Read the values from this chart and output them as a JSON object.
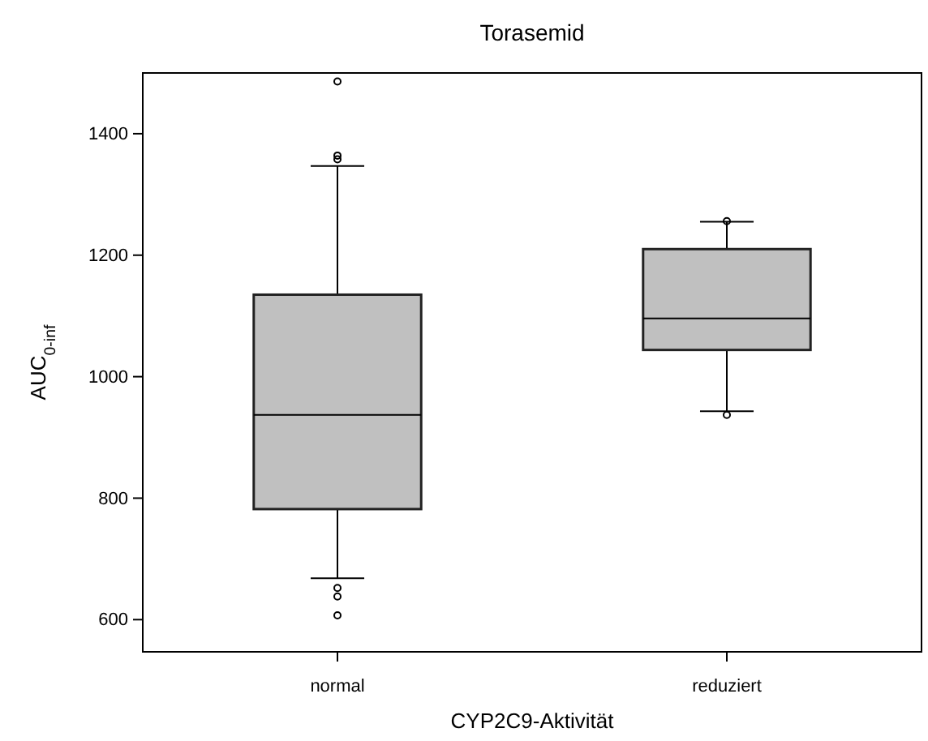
{
  "chart_data": {
    "type": "box",
    "title": "Torasemid",
    "xlabel": "CYP2C9-Aktivität",
    "ylabel": "AUC$_{0-inf}$",
    "categories": [
      "normal",
      "reduziert"
    ],
    "boxes": [
      {
        "low": 668,
        "q1": 782,
        "median": 937,
        "q3": 1135,
        "high": 1347,
        "outliers": [
          1486,
          1364,
          1358,
          652,
          638,
          607
        ]
      },
      {
        "low": 943,
        "q1": 1044,
        "median": 1096,
        "q3": 1210,
        "high": 1255,
        "outliers": [
          1256,
          937
        ]
      }
    ],
    "color": "#c0c0c0",
    "ylim": [
      547,
      1500
    ],
    "yticks": [
      600,
      800,
      1000,
      1200,
      1400
    ]
  }
}
